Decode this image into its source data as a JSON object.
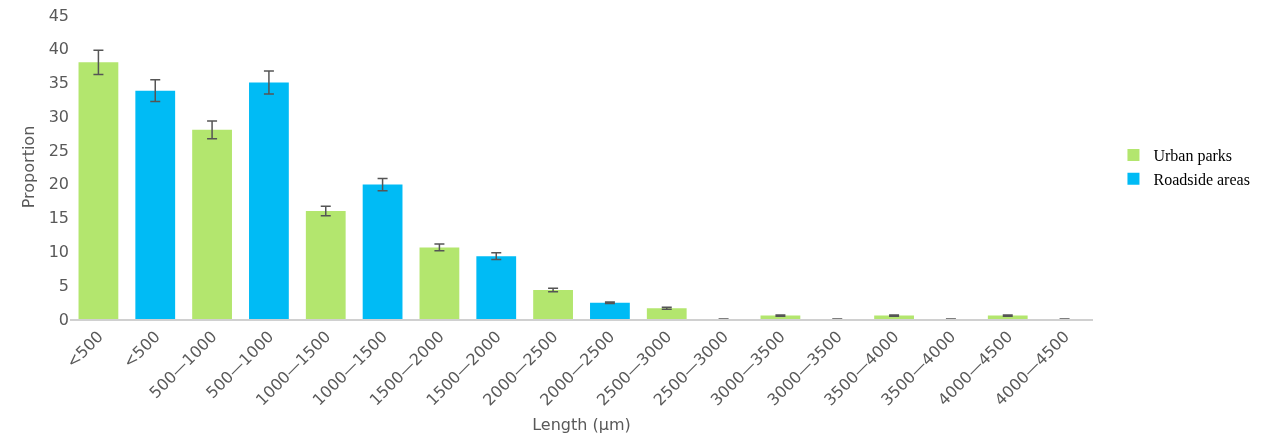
{
  "chart_data": {
    "type": "bar",
    "xlabel": "Length (μm)",
    "ylabel": "Proportion",
    "categories": [
      "<500",
      "<500",
      "500—1000",
      "500—1000",
      "1000—1500",
      "1000—1500",
      "1500—2000",
      "1500—2000",
      "2000—2500",
      "2000—2500",
      "2500—3000",
      "2500—3000",
      "3000—3500",
      "3000—3500",
      "3500—4000",
      "3500—4000",
      "4000—4500",
      "4000—4500"
    ],
    "series": [
      {
        "name": "Urban parks",
        "color": "#b3e66e",
        "values": [
          38,
          null,
          28,
          null,
          16,
          null,
          10.6,
          null,
          4.3,
          null,
          1.6,
          null,
          0.5,
          null,
          0.5,
          null,
          0.5,
          null
        ],
        "errors": [
          1.8,
          null,
          1.3,
          null,
          0.7,
          null,
          0.5,
          null,
          0.25,
          null,
          0.15,
          null,
          0.1,
          null,
          0.1,
          null,
          0.1,
          null
        ]
      },
      {
        "name": "Roadside areas",
        "color": "#00bbf5",
        "values": [
          null,
          33.8,
          null,
          35,
          null,
          19.9,
          null,
          9.3,
          null,
          2.4,
          null,
          0,
          null,
          0,
          null,
          0,
          null,
          0
        ],
        "errors": [
          null,
          1.6,
          null,
          1.7,
          null,
          0.9,
          null,
          0.5,
          null,
          0.1,
          null,
          null,
          null,
          null,
          null,
          null,
          null,
          null
        ]
      }
    ],
    "ylim": [
      0,
      45
    ],
    "yticks": [
      0,
      5,
      10,
      15,
      20,
      25,
      30,
      35,
      40,
      45
    ],
    "grid": false,
    "legend": "right"
  }
}
